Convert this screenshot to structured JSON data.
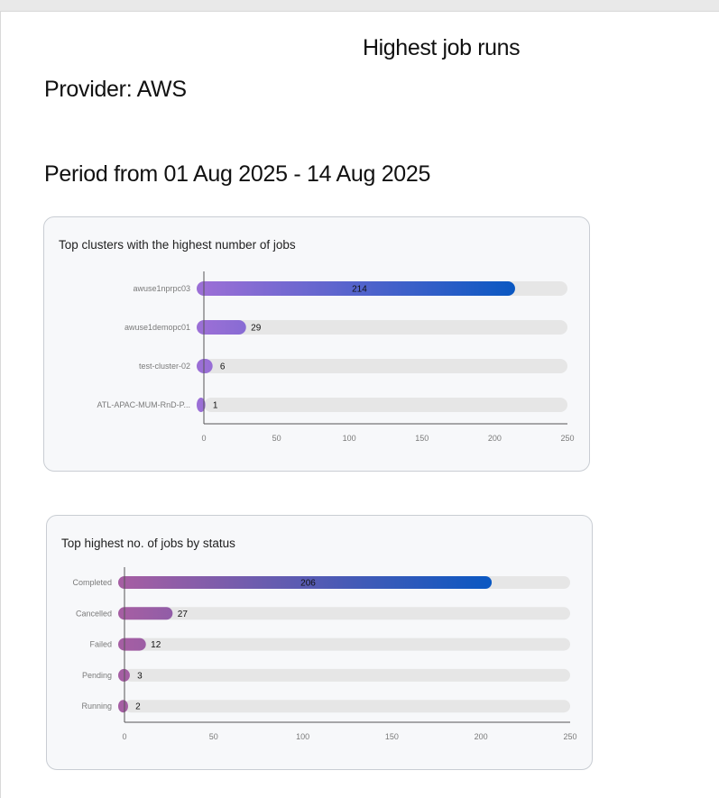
{
  "report": {
    "title": "Highest job runs",
    "provider": "Provider: AWS",
    "period": "Period from 01 Aug 2025 - 14 Aug 2025"
  },
  "colors": {
    "gradient_start_1": "#9b6fd6",
    "gradient_end": "#0a58c2",
    "gradient_start_2": "#a55ea3",
    "track": "#e6e6e6",
    "card_bg": "#f7f8fa"
  },
  "chart_data": [
    {
      "type": "bar",
      "orientation": "horizontal",
      "title": "Top clusters with the highest number of jobs",
      "categories": [
        "awuse1nprpc03",
        "awuse1demopc01",
        "test-cluster-02",
        "ATL-APAC-MUM-RnD-P..."
      ],
      "values": [
        214,
        29,
        6,
        1
      ],
      "xlim": [
        0,
        250
      ],
      "ticks": [
        0,
        50,
        100,
        150,
        200,
        250
      ],
      "data_labels": true,
      "grid": false
    },
    {
      "type": "bar",
      "orientation": "horizontal",
      "title": "Top highest no. of jobs by status",
      "categories": [
        "Completed",
        "Cancelled",
        "Failed",
        "Pending",
        "Running"
      ],
      "values": [
        206,
        27,
        12,
        3,
        2
      ],
      "xlim": [
        0,
        250
      ],
      "ticks": [
        0,
        50,
        100,
        150,
        200,
        250
      ],
      "data_labels": true,
      "grid": false
    }
  ]
}
